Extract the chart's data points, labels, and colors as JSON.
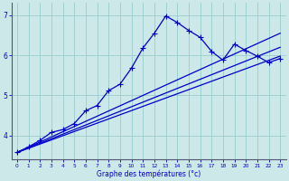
{
  "xlabel": "Graphe des températures (°c)",
  "bg_color": "#cce8e8",
  "grid_color": "#99cccc",
  "line_color": "#0000cc",
  "xlim": [
    -0.5,
    23.5
  ],
  "ylim": [
    3.4,
    7.3
  ],
  "yticks": [
    4,
    5,
    6,
    7
  ],
  "xticks": [
    0,
    1,
    2,
    3,
    4,
    5,
    6,
    7,
    8,
    9,
    10,
    11,
    12,
    13,
    14,
    15,
    16,
    17,
    18,
    19,
    20,
    21,
    22,
    23
  ],
  "series": [
    {
      "x": [
        0,
        23
      ],
      "y": [
        3.58,
        5.98
      ],
      "marker": null,
      "linewidth": 0.9
    },
    {
      "x": [
        0,
        23
      ],
      "y": [
        3.58,
        6.2
      ],
      "marker": null,
      "linewidth": 0.9
    },
    {
      "x": [
        0,
        23
      ],
      "y": [
        3.58,
        6.55
      ],
      "marker": null,
      "linewidth": 0.9
    },
    {
      "x": [
        0,
        1,
        2,
        3,
        4,
        5,
        6,
        7,
        8,
        9,
        10,
        11,
        12,
        13,
        14,
        15,
        16,
        17,
        18,
        19,
        20,
        21,
        22,
        23
      ],
      "y": [
        3.58,
        3.72,
        3.88,
        4.08,
        4.15,
        4.3,
        4.62,
        4.75,
        5.12,
        5.28,
        5.68,
        6.18,
        6.55,
        6.98,
        6.82,
        6.62,
        6.45,
        6.1,
        5.88,
        6.28,
        6.12,
        5.98,
        5.82,
        5.92
      ],
      "marker": "+",
      "markersize": 4.0,
      "linewidth": 0.9
    }
  ]
}
